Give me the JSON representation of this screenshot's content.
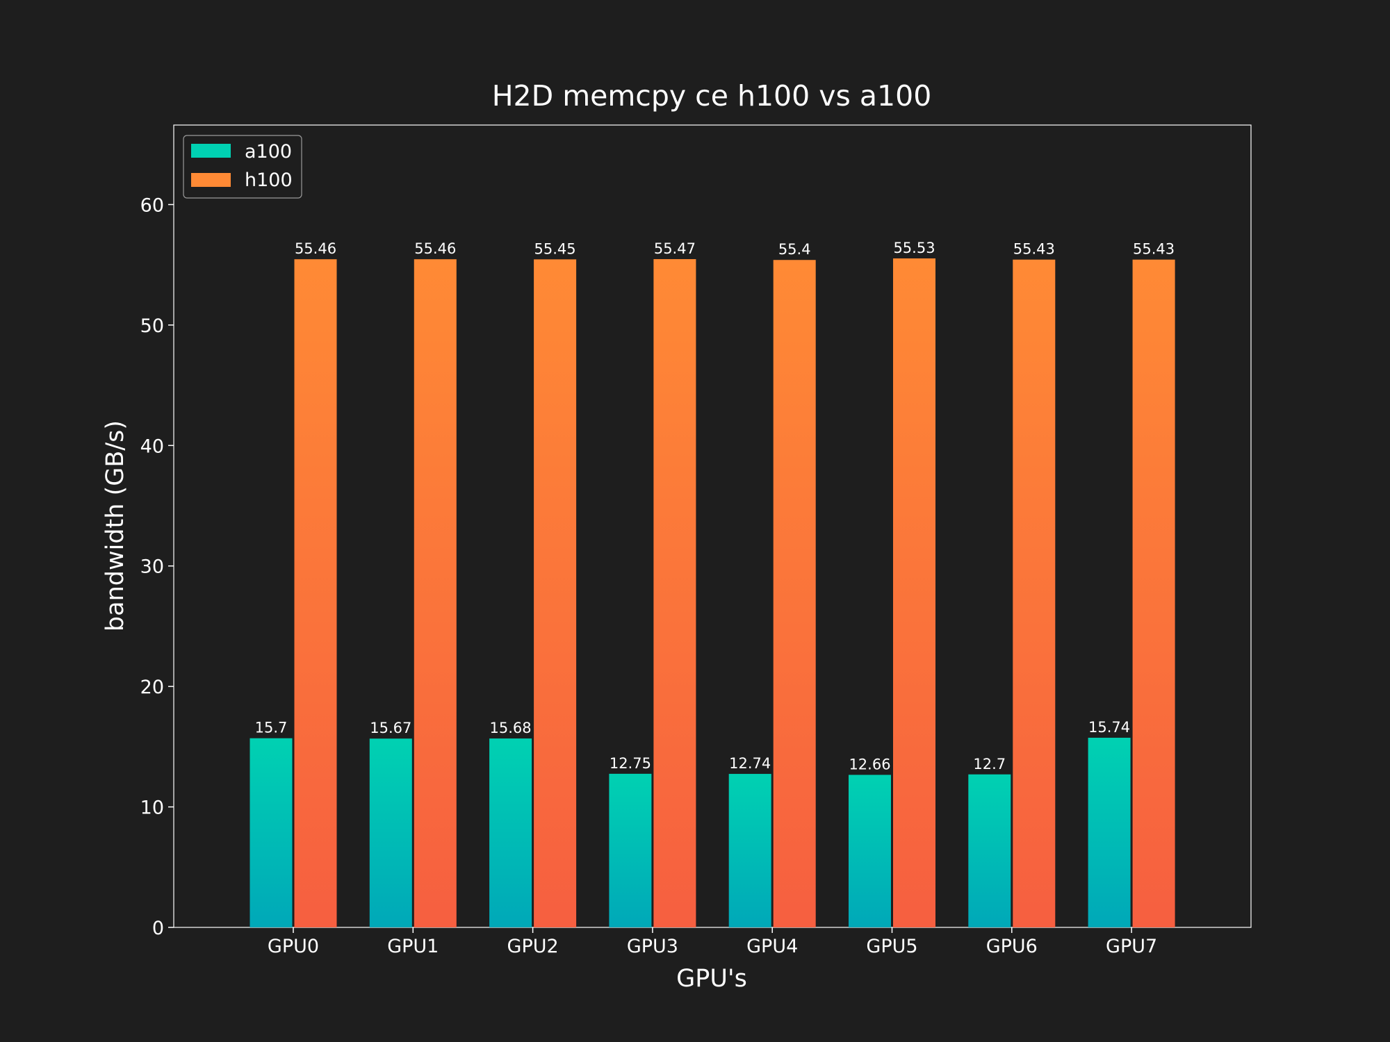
{
  "chart_data": {
    "type": "bar",
    "title": "H2D memcpy ce h100 vs a100",
    "xlabel": "GPU's",
    "ylabel": "bandwidth (GB/s)",
    "categories": [
      "GPU0",
      "GPU1",
      "GPU2",
      "GPU3",
      "GPU4",
      "GPU5",
      "GPU6",
      "GPU7"
    ],
    "series": [
      {
        "name": "a100",
        "values": [
          15.7,
          15.67,
          15.68,
          12.75,
          12.74,
          12.66,
          12.7,
          15.74
        ],
        "color_top": "#00d1b2",
        "color_bottom": "#00a8b8"
      },
      {
        "name": "h100",
        "values": [
          55.46,
          55.46,
          55.45,
          55.47,
          55.4,
          55.53,
          55.43,
          55.43
        ],
        "color_top": "#ff8a35",
        "color_bottom": "#f65f40"
      }
    ],
    "ylim": [
      0,
      66.6
    ],
    "yticks": [
      0,
      10,
      20,
      30,
      40,
      50,
      60
    ],
    "grid": false,
    "legend_position": "top-left",
    "background": "#1e1e1e",
    "axes_color": "#ffffff"
  }
}
